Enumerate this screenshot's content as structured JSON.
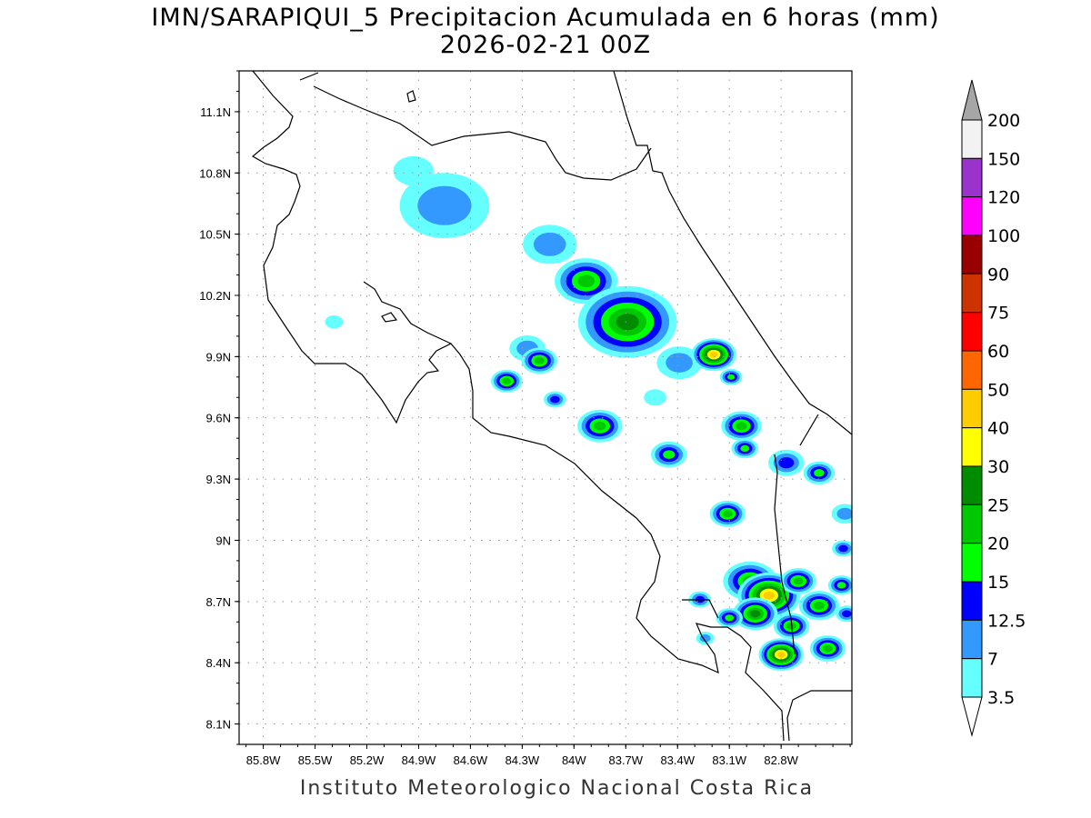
{
  "title": "IMN/SARAPIQUI_5 Precipitacion Acumulada en 6 horas (mm)",
  "subtitle": "2026-02-21 00Z",
  "footer": "Instituto Meteorologico Nacional Costa Rica",
  "chart_data": {
    "type": "heatmap",
    "title": "IMN/SARAPIQUI_5 Precipitacion Acumulada en 6 horas (mm)",
    "subtitle": "2026-02-21 00Z",
    "units": "mm",
    "x_ticks": [
      "85.8W",
      "85.5W",
      "85.2W",
      "84.9W",
      "84.6W",
      "84.3W",
      "84W",
      "83.7W",
      "83.4W",
      "83.1W",
      "82.8W"
    ],
    "x_tick_values": [
      -85.8,
      -85.5,
      -85.2,
      -84.9,
      -84.6,
      -84.3,
      -84.0,
      -83.7,
      -83.4,
      -83.1,
      -82.8
    ],
    "y_ticks": [
      "11.1N",
      "10.8N",
      "10.5N",
      "10.2N",
      "9.9N",
      "9.6N",
      "9.3N",
      "9N",
      "8.7N",
      "8.4N",
      "8.1N"
    ],
    "y_tick_values": [
      11.1,
      10.8,
      10.5,
      10.2,
      9.9,
      9.6,
      9.3,
      9.0,
      8.7,
      8.4,
      8.1
    ],
    "xlim": [
      -85.94,
      -82.39
    ],
    "ylim": [
      8.0,
      11.3
    ],
    "grid": true,
    "legend_placement": "right",
    "colorbar": {
      "labels": [
        "200",
        "150",
        "120",
        "100",
        "90",
        "75",
        "60",
        "50",
        "40",
        "30",
        "25",
        "20",
        "15",
        "12.5",
        "7",
        "3.5"
      ],
      "colors": [
        "#f2f2f2",
        "#9933cc",
        "#ff00ff",
        "#990000",
        "#cc3300",
        "#ff0000",
        "#ff6600",
        "#ffcc00",
        "#ffff00",
        "#008c00",
        "#00c800",
        "#00ff00",
        "#0000ff",
        "#3399ff",
        "#66ffff"
      ],
      "over_color": "#a6a6a6",
      "under_color": "#ffffff"
    },
    "levels": [
      3.5,
      7,
      12.5,
      15,
      20,
      25,
      30,
      40
    ],
    "level_colors": [
      "#66ffff",
      "#3399ff",
      "#0000ff",
      "#00ff00",
      "#00c800",
      "#008c00",
      "#ffff00",
      "#ffcc00"
    ],
    "cells": [
      {
        "lon": -84.93,
        "lat": 10.81,
        "max": 3.5,
        "size": 0.09
      },
      {
        "lon": -84.75,
        "lat": 10.64,
        "max": 7,
        "size": 0.2
      },
      {
        "lon": -85.39,
        "lat": 10.07,
        "max": 3.5,
        "size": 0.04
      },
      {
        "lon": -84.14,
        "lat": 10.45,
        "max": 7,
        "size": 0.12
      },
      {
        "lon": -83.93,
        "lat": 10.27,
        "max": 20,
        "size": 0.14
      },
      {
        "lon": -83.69,
        "lat": 10.07,
        "max": 25,
        "size": 0.22
      },
      {
        "lon": -84.27,
        "lat": 9.94,
        "max": 7,
        "size": 0.08
      },
      {
        "lon": -84.2,
        "lat": 9.88,
        "max": 20,
        "size": 0.08
      },
      {
        "lon": -84.39,
        "lat": 9.78,
        "max": 20,
        "size": 0.07
      },
      {
        "lon": -84.11,
        "lat": 9.69,
        "max": 12.5,
        "size": 0.05
      },
      {
        "lon": -83.85,
        "lat": 9.56,
        "max": 20,
        "size": 0.1
      },
      {
        "lon": -83.45,
        "lat": 9.42,
        "max": 15,
        "size": 0.08
      },
      {
        "lon": -83.53,
        "lat": 9.7,
        "max": 3.5,
        "size": 0.05
      },
      {
        "lon": -83.39,
        "lat": 9.87,
        "max": 7,
        "size": 0.1
      },
      {
        "lon": -83.19,
        "lat": 9.91,
        "max": 40,
        "size": 0.1
      },
      {
        "lon": -83.09,
        "lat": 9.8,
        "max": 15,
        "size": 0.05
      },
      {
        "lon": -83.03,
        "lat": 9.56,
        "max": 20,
        "size": 0.09
      },
      {
        "lon": -83.01,
        "lat": 9.45,
        "max": 15,
        "size": 0.06
      },
      {
        "lon": -83.11,
        "lat": 9.13,
        "max": 20,
        "size": 0.08
      },
      {
        "lon": -82.77,
        "lat": 9.38,
        "max": 12.5,
        "size": 0.08
      },
      {
        "lon": -82.58,
        "lat": 9.33,
        "max": 15,
        "size": 0.07
      },
      {
        "lon": -82.43,
        "lat": 9.13,
        "max": 7,
        "size": 0.06
      },
      {
        "lon": -82.44,
        "lat": 8.96,
        "max": 12.5,
        "size": 0.05
      },
      {
        "lon": -82.98,
        "lat": 8.8,
        "max": 20,
        "size": 0.12
      },
      {
        "lon": -82.87,
        "lat": 8.73,
        "max": 40,
        "size": 0.14
      },
      {
        "lon": -82.95,
        "lat": 8.64,
        "max": 25,
        "size": 0.1
      },
      {
        "lon": -82.74,
        "lat": 8.58,
        "max": 20,
        "size": 0.08
      },
      {
        "lon": -82.7,
        "lat": 8.8,
        "max": 20,
        "size": 0.08
      },
      {
        "lon": -82.58,
        "lat": 8.68,
        "max": 20,
        "size": 0.09
      },
      {
        "lon": -82.45,
        "lat": 8.78,
        "max": 15,
        "size": 0.06
      },
      {
        "lon": -82.8,
        "lat": 8.44,
        "max": 40,
        "size": 0.1
      },
      {
        "lon": -82.53,
        "lat": 8.47,
        "max": 20,
        "size": 0.08
      },
      {
        "lon": -83.27,
        "lat": 8.71,
        "max": 12.5,
        "size": 0.05
      },
      {
        "lon": -83.24,
        "lat": 8.52,
        "max": 7,
        "size": 0.04
      },
      {
        "lon": -83.1,
        "lat": 8.62,
        "max": 15,
        "size": 0.06
      },
      {
        "lon": -82.42,
        "lat": 8.64,
        "max": 12.5,
        "size": 0.05
      }
    ]
  }
}
